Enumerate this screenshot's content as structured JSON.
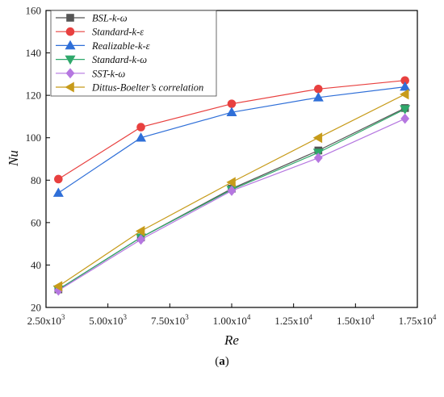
{
  "caption": {
    "open": "(",
    "letter": "a",
    "close": ")"
  },
  "chart_data": {
    "type": "line",
    "xlabel": "Re",
    "ylabel": "Nu",
    "xlim": [
      2500,
      17500
    ],
    "ylim": [
      20,
      160
    ],
    "x": [
      3000,
      6333,
      10000,
      13500,
      17000
    ],
    "x_ticks": [
      2500,
      5000,
      7500,
      10000,
      12500,
      15000,
      17500
    ],
    "x_tick_labels": [
      {
        "mant": "2.50x10",
        "exp": "3"
      },
      {
        "mant": "5.00x10",
        "exp": "3"
      },
      {
        "mant": "7.50x10",
        "exp": "3"
      },
      {
        "mant": "1.00x10",
        "exp": "4"
      },
      {
        "mant": "1.25x10",
        "exp": "4"
      },
      {
        "mant": "1.50x10",
        "exp": "4"
      },
      {
        "mant": "1.75x10",
        "exp": "4"
      }
    ],
    "y_ticks": [
      20,
      40,
      60,
      80,
      100,
      120,
      140,
      160
    ],
    "legend_position": "top-left",
    "grid": false,
    "series": [
      {
        "name": "BSL-k-ω",
        "color": "#555555",
        "marker": "square",
        "values": [
          28.5,
          53,
          76,
          94,
          114
        ]
      },
      {
        "name": "Standard-k-ε",
        "color": "#e8403f",
        "marker": "circle",
        "values": [
          80.5,
          105,
          116,
          123,
          127
        ]
      },
      {
        "name": "Realizable-k-ε",
        "color": "#2f6fd8",
        "marker": "triangle-up",
        "values": [
          74,
          100,
          112,
          119,
          124
        ]
      },
      {
        "name": "Standard-k-ω",
        "color": "#2fa86b",
        "marker": "triangle-down",
        "values": [
          28.5,
          53,
          75.5,
          93,
          113.5
        ]
      },
      {
        "name": "SST-k-ω",
        "color": "#b577e0",
        "marker": "diamond",
        "values": [
          28,
          52,
          75,
          90.5,
          109
        ]
      },
      {
        "name": "Dittus-Boelter’s correlation",
        "color": "#c79b1a",
        "marker": "triangle-left",
        "values": [
          30,
          56,
          79,
          100,
          120.5
        ]
      }
    ]
  }
}
